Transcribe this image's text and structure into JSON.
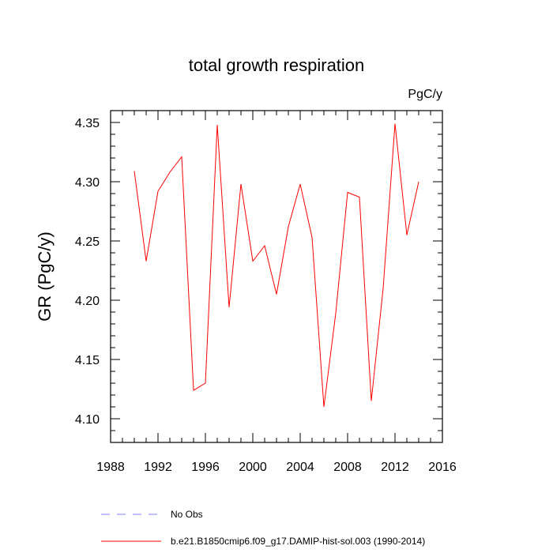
{
  "chart_data": {
    "type": "line",
    "title": "total growth respiration",
    "units_label": "PgC/y",
    "ylabel": "GR  (PgC/y)",
    "xlabel": "",
    "xlim": [
      1988,
      2016
    ],
    "ylim": [
      4.08,
      4.36
    ],
    "x_ticks": [
      1988,
      1992,
      1996,
      2000,
      2004,
      2008,
      2012,
      2016
    ],
    "x_tick_labels": [
      "1988",
      "1992",
      "1996",
      "2000",
      "2004",
      "2008",
      "2012",
      "2016"
    ],
    "y_ticks": [
      4.1,
      4.15,
      4.2,
      4.25,
      4.3,
      4.35
    ],
    "y_tick_labels": [
      "4.10",
      "4.15",
      "4.20",
      "4.25",
      "4.30",
      "4.35"
    ],
    "grid": false,
    "legend_position": "bottom",
    "series": [
      {
        "name": "b.e21.B1850cmip6.f09_g17.DAMIP-hist-sol.003 (1990-2014)",
        "color": "#ff0000",
        "style": "solid",
        "x": [
          1990,
          1991,
          1992,
          1993,
          1994,
          1995,
          1996,
          1997,
          1998,
          1999,
          2000,
          2001,
          2002,
          2003,
          2004,
          2005,
          2006,
          2007,
          2008,
          2009,
          2010,
          2011,
          2012,
          2013,
          2014
        ],
        "y": [
          4.309,
          4.233,
          4.292,
          4.308,
          4.321,
          4.124,
          4.13,
          4.348,
          4.194,
          4.298,
          4.233,
          4.246,
          4.205,
          4.262,
          4.298,
          4.253,
          4.11,
          4.189,
          4.291,
          4.287,
          4.115,
          4.21,
          4.349,
          4.255,
          4.3
        ]
      }
    ],
    "legend": [
      {
        "label": "No Obs",
        "color": "#8080ff",
        "style": "dashed"
      },
      {
        "label": "b.e21.B1850cmip6.f09_g17.DAMIP-hist-sol.003 (1990-2014)",
        "color": "#ff0000",
        "style": "solid"
      }
    ]
  }
}
